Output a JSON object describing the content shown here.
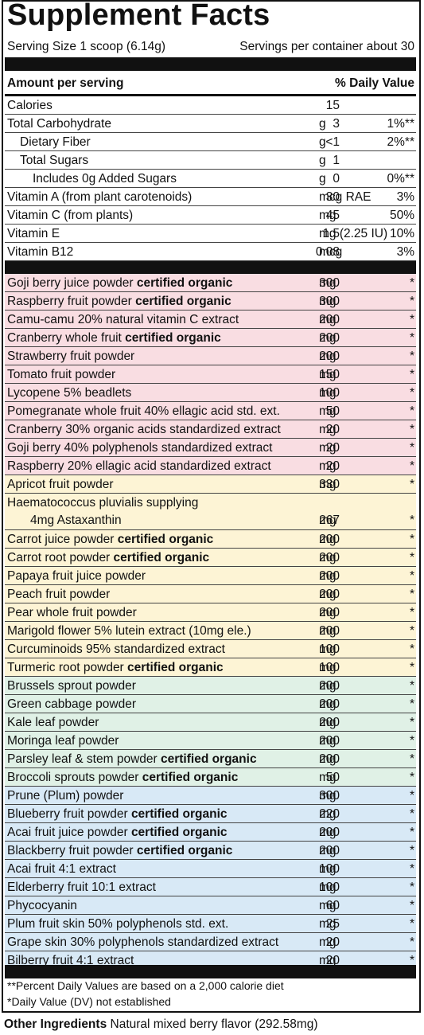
{
  "title": "Supplement Facts",
  "serving_size": "Serving Size 1 scoop (6.14g)",
  "servings_per_container": "Servings per container about 30",
  "header": {
    "amount": "Amount per serving",
    "dv": "% Daily Value"
  },
  "nutrients": [
    {
      "name": "Calories",
      "amount": "15",
      "unit": "",
      "dv": "",
      "indent": 0
    },
    {
      "name": "Total Carbohydrate",
      "amount": "3",
      "unit": "g",
      "dv": "1%**",
      "indent": 0
    },
    {
      "name": "Dietary Fiber",
      "amount": "<1",
      "unit": "g",
      "dv": "2%**",
      "indent": 1
    },
    {
      "name": "Total Sugars",
      "amount": "1",
      "unit": "g",
      "dv": "",
      "indent": 1
    },
    {
      "name": "Includes 0g Added Sugars",
      "amount": "0",
      "unit": "g",
      "dv": "0%**",
      "indent": 2
    },
    {
      "name": "Vitamin A (from plant carotenoids)",
      "amount": "30",
      "unit": "mcg RAE",
      "dv": "3%",
      "indent": 0
    },
    {
      "name": "Vitamin C (from plants)",
      "amount": "45",
      "unit": "mg",
      "dv": "50%",
      "indent": 0
    },
    {
      "name": "Vitamin E",
      "amount": "1.5",
      "unit": "mg (2.25 IU)",
      "dv": "10%",
      "indent": 0
    },
    {
      "name": "Vitamin B12",
      "amount": "0.08",
      "unit": "mcg",
      "dv": "3%",
      "indent": 0
    }
  ],
  "colors": {
    "red": "#f9dde2",
    "yellow": "#fdf4d5",
    "green": "#e0f1e6",
    "blue": "#d8e9f6"
  },
  "ingredients": [
    {
      "name": "Goji berry juice powder",
      "bold": "certified organic",
      "amount": "300",
      "unit": "mg",
      "dv": "*",
      "color": "red"
    },
    {
      "name": "Raspberry fruit powder",
      "bold": "certified organic",
      "amount": "300",
      "unit": "mg",
      "dv": "*",
      "color": "red"
    },
    {
      "name": "Camu-camu 20% natural vitamin C extract",
      "bold": "",
      "amount": "200",
      "unit": "mg",
      "dv": "*",
      "color": "red"
    },
    {
      "name": "Cranberry whole fruit",
      "bold": "certified organic",
      "amount": "200",
      "unit": "mg",
      "dv": "*",
      "color": "red"
    },
    {
      "name": "Strawberry fruit powder",
      "bold": "",
      "amount": "200",
      "unit": "mg",
      "dv": "*",
      "color": "red"
    },
    {
      "name": "Tomato fruit powder",
      "bold": "",
      "amount": "150",
      "unit": "mg",
      "dv": "*",
      "color": "red"
    },
    {
      "name": "Lycopene 5% beadlets",
      "bold": "",
      "amount": "100",
      "unit": "mg",
      "dv": "*",
      "color": "red"
    },
    {
      "name": "Pomegranate whole fruit 40% ellagic acid std. ext.",
      "bold": "",
      "amount": "50",
      "unit": "mg",
      "dv": "*",
      "color": "red"
    },
    {
      "name": "Cranberry 30% organic acids standardized extract",
      "bold": "",
      "amount": "20",
      "unit": "mg",
      "dv": "*",
      "color": "red"
    },
    {
      "name": "Goji berry 40% polyphenols standardized extract",
      "bold": "",
      "amount": "20",
      "unit": "mg",
      "dv": "*",
      "color": "red"
    },
    {
      "name": "Raspberry 20% ellagic acid standardized extract",
      "bold": "",
      "amount": "20",
      "unit": "mg",
      "dv": "*",
      "color": "red"
    },
    {
      "name": "Apricot fruit powder",
      "bold": "",
      "amount": "330",
      "unit": "mg",
      "dv": "*",
      "color": "yellow"
    },
    {
      "name": "Haematococcus pluvialis supplying",
      "line2": "4mg Astaxanthin",
      "bold": "",
      "amount": "267",
      "unit": "mg",
      "dv": "*",
      "color": "yellow"
    },
    {
      "name": "Carrot juice powder",
      "bold": "certified organic",
      "amount": "200",
      "unit": "mg",
      "dv": "*",
      "color": "yellow"
    },
    {
      "name": "Carrot root powder",
      "bold": "certified organic",
      "amount": "200",
      "unit": "mg",
      "dv": "*",
      "color": "yellow"
    },
    {
      "name": "Papaya fruit juice powder",
      "bold": "",
      "amount": "200",
      "unit": "mg",
      "dv": "*",
      "color": "yellow"
    },
    {
      "name": "Peach fruit powder",
      "bold": "",
      "amount": "200",
      "unit": "mg",
      "dv": "*",
      "color": "yellow"
    },
    {
      "name": "Pear whole fruit powder",
      "bold": "",
      "amount": "200",
      "unit": "mg",
      "dv": "*",
      "color": "yellow"
    },
    {
      "name": "Marigold flower 5% lutein extract (10mg ele.)",
      "bold": "",
      "amount": "200",
      "unit": "mg",
      "dv": "*",
      "color": "yellow"
    },
    {
      "name": "Curcuminoids 95% standardized extract",
      "bold": "",
      "amount": "100",
      "unit": "mg",
      "dv": "*",
      "color": "yellow"
    },
    {
      "name": "Turmeric root powder",
      "bold": "certified organic",
      "amount": "100",
      "unit": "mg",
      "dv": "*",
      "color": "yellow"
    },
    {
      "name": "Brussels sprout powder",
      "bold": "",
      "amount": "200",
      "unit": "mg",
      "dv": "*",
      "color": "green"
    },
    {
      "name": "Green cabbage powder",
      "bold": "",
      "amount": "200",
      "unit": "mg",
      "dv": "*",
      "color": "green"
    },
    {
      "name": "Kale leaf powder",
      "bold": "",
      "amount": "200",
      "unit": "mg",
      "dv": "*",
      "color": "green"
    },
    {
      "name": "Moringa leaf powder",
      "bold": "",
      "amount": "200",
      "unit": "mg",
      "dv": "*",
      "color": "green"
    },
    {
      "name": "Parsley leaf & stem powder",
      "bold": "certified organic",
      "amount": "200",
      "unit": "mg",
      "dv": "*",
      "color": "green"
    },
    {
      "name": "Broccoli sprouts powder",
      "bold": "certified organic",
      "amount": "50",
      "unit": "mg",
      "dv": "*",
      "color": "green"
    },
    {
      "name": "Prune (Plum) powder",
      "bold": "",
      "amount": "300",
      "unit": "mg",
      "dv": "*",
      "color": "blue"
    },
    {
      "name": "Blueberry fruit powder",
      "bold": "certified organic",
      "amount": "220",
      "unit": "mg",
      "dv": "*",
      "color": "blue"
    },
    {
      "name": "Acai fruit juice powder",
      "bold": "certified organic",
      "amount": "200",
      "unit": "mg",
      "dv": "*",
      "color": "blue"
    },
    {
      "name": "Blackberry fruit powder",
      "bold": "certified organic",
      "amount": "200",
      "unit": "mg",
      "dv": "*",
      "color": "blue"
    },
    {
      "name": "Acai fruit 4:1 extract",
      "bold": "",
      "amount": "100",
      "unit": "mg",
      "dv": "*",
      "color": "blue"
    },
    {
      "name": "Elderberry fruit 10:1 extract",
      "bold": "",
      "amount": "100",
      "unit": "mg",
      "dv": "*",
      "color": "blue"
    },
    {
      "name": "Phycocyanin",
      "bold": "",
      "amount": "60",
      "unit": "mg",
      "dv": "*",
      "color": "blue"
    },
    {
      "name": "Plum fruit skin 50% polyphenols std. ext.",
      "bold": "",
      "amount": "25",
      "unit": "mg",
      "dv": "*",
      "color": "blue"
    },
    {
      "name": "Grape skin 30% polyphenols standardized extract",
      "bold": "",
      "amount": "20",
      "unit": "mg",
      "dv": "*",
      "color": "blue"
    },
    {
      "name": "Bilberry fruit 4:1 extract",
      "bold": "",
      "amount": "20",
      "unit": "mg",
      "dv": "*",
      "color": "blue"
    }
  ],
  "footnote_1": "**Percent Daily Values are based on a 2,000 calorie diet",
  "footnote_2": "*Daily Value (DV) not established",
  "other_ingredients": {
    "label": "Other Ingredients",
    "text": "Natural mixed berry flavor (292.58mg)"
  }
}
